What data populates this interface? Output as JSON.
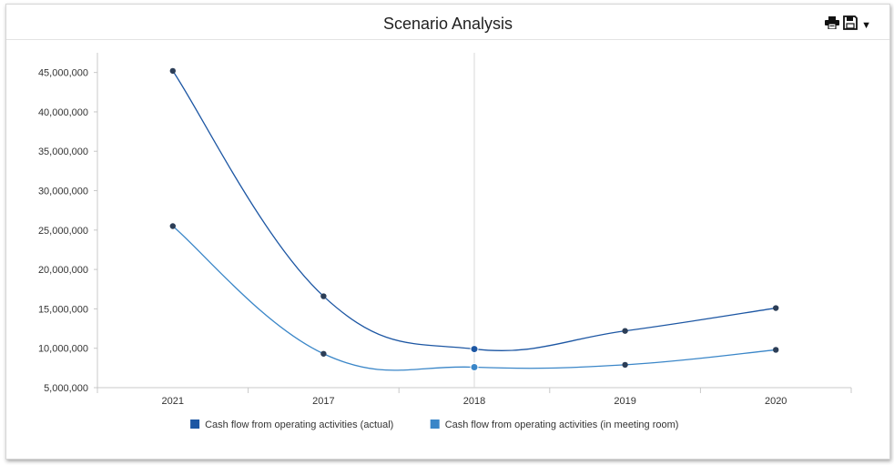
{
  "header": {
    "title": "Scenario Analysis",
    "print_icon": "printer-icon",
    "save_icon": "floppy-disk-icon",
    "menu_icon": "chevron-down-icon"
  },
  "chart_data": {
    "type": "line",
    "title": "Scenario Analysis",
    "xlabel": "",
    "ylabel": "",
    "categories": [
      "2021",
      "2017",
      "2018",
      "2019",
      "2020"
    ],
    "ylim": [
      5000000,
      47500000
    ],
    "yticks": [
      5000000,
      10000000,
      15000000,
      20000000,
      25000000,
      30000000,
      35000000,
      40000000,
      45000000
    ],
    "ytick_labels": [
      "5,000,000",
      "10,000,000",
      "15,000,000",
      "20,000,000",
      "25,000,000",
      "30,000,000",
      "35,000,000",
      "40,000,000",
      "45,000,000"
    ],
    "grid": false,
    "legend_position": "bottom-center",
    "highlighted_category": "2018",
    "series": [
      {
        "name": "Cash flow from operating activities (actual)",
        "color": "#1c56a3",
        "values": [
          45200000,
          16600000,
          9900000,
          12200000,
          15100000
        ]
      },
      {
        "name": "Cash flow from operating activities (in meeting room)",
        "color": "#3a86c8",
        "values": [
          25500000,
          9300000,
          7600000,
          7900000,
          9800000
        ]
      }
    ],
    "marker_color": "#2c3e57",
    "highlight_marker_colors": [
      "#1c56a3",
      "#3a86c8"
    ]
  }
}
